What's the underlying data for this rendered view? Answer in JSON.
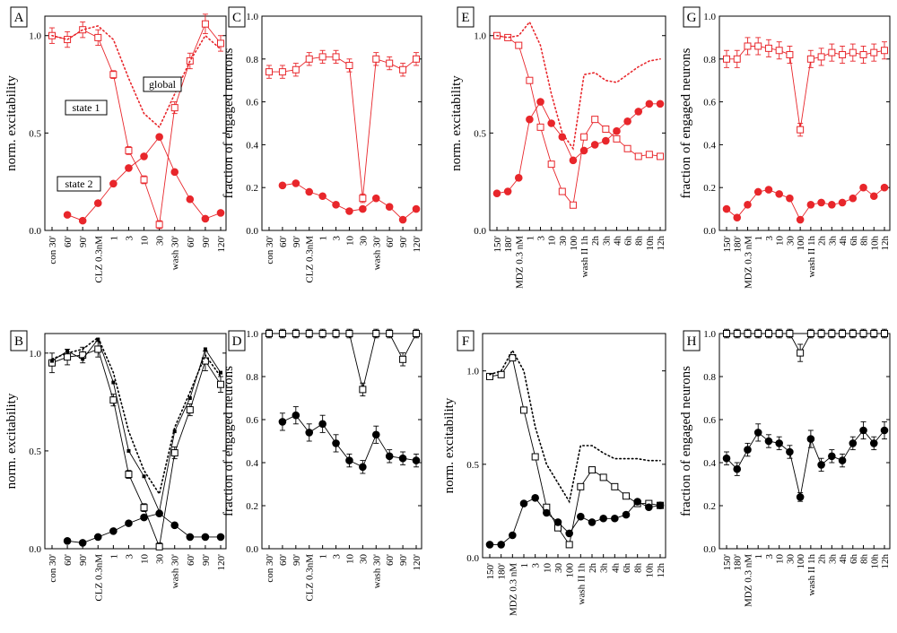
{
  "figure_title": "",
  "chart_data": [
    {
      "id": "A",
      "type": "line",
      "panel_label": "A",
      "color": "#e8262b",
      "ylabel": "norm. excitability",
      "ylim": [
        0,
        1.1
      ],
      "yticks": [
        "0.0",
        "0.5",
        "1.0"
      ],
      "ytick_values": [
        0,
        0.5,
        1.0
      ],
      "categories": [
        "con 30'",
        "60'",
        "90'",
        "CLZ 0.3nM",
        "1",
        "3",
        "10",
        "30",
        "wash 30'",
        "60'",
        "90'",
        "120'"
      ],
      "series": [
        {
          "name": "state 1",
          "marker": "open-square",
          "style": "solid",
          "values": [
            1.0,
            0.98,
            1.03,
            0.99,
            0.8,
            0.41,
            0.26,
            0.03,
            0.63,
            0.87,
            1.06,
            0.96
          ],
          "err": [
            0.04,
            0.04,
            0.04,
            0.04,
            0.02,
            0.02,
            0.02,
            0.02,
            0.03,
            0.04,
            0.05,
            0.04
          ]
        },
        {
          "name": "state 2",
          "marker": "filled-circle",
          "style": "solid",
          "values": [
            null,
            0.08,
            0.05,
            0.14,
            0.24,
            0.32,
            0.38,
            0.48,
            0.3,
            0.16,
            0.06,
            0.09
          ]
        },
        {
          "name": "global",
          "marker": "none",
          "style": "dotted",
          "values": [
            1.0,
            0.98,
            1.03,
            1.05,
            0.98,
            0.78,
            0.6,
            0.53,
            0.7,
            0.87,
            1.0,
            0.93
          ]
        }
      ],
      "annotations": [
        "global",
        "state 1",
        "state 2"
      ]
    },
    {
      "id": "B",
      "type": "line",
      "panel_label": "B",
      "color": "#000000",
      "ylabel": "norm. excitability",
      "ylim": [
        0,
        1.1
      ],
      "yticks": [
        "0.0",
        "0.5",
        "1.0"
      ],
      "ytick_values": [
        0,
        0.5,
        1.0
      ],
      "categories": [
        "con 30'",
        "60'",
        "90'",
        "CLZ 0.3nM",
        "1",
        "3",
        "10",
        "30",
        "wash 30'",
        "60'",
        "90'",
        "120'"
      ],
      "series": [
        {
          "name": "state 1",
          "marker": "open-square",
          "style": "solid",
          "values": [
            0.95,
            0.98,
            0.99,
            1.02,
            0.76,
            0.38,
            0.21,
            0.01,
            0.49,
            0.71,
            0.96,
            0.84
          ],
          "err": [
            0.05,
            0.04,
            0.04,
            0.04,
            0.03,
            0.02,
            0.02,
            0.02,
            0.03,
            0.03,
            0.05,
            0.04
          ]
        },
        {
          "name": "state 2",
          "marker": "filled-circle",
          "style": "solid",
          "values": [
            null,
            0.04,
            0.03,
            0.06,
            0.09,
            0.13,
            0.16,
            0.18,
            0.12,
            0.06,
            0.06,
            0.06
          ]
        },
        {
          "name": "small markers",
          "marker": "small-filled-square",
          "style": "solid",
          "values": [
            0.96,
            1.01,
            0.97,
            1.07,
            0.85,
            0.5,
            0.37,
            0.19,
            0.6,
            0.77,
            1.02,
            0.9
          ]
        },
        {
          "name": "global",
          "marker": "none",
          "style": "dotted",
          "values": [
            0.97,
            1.0,
            1.02,
            1.08,
            0.9,
            0.6,
            0.4,
            0.28,
            0.62,
            0.8,
            0.99,
            0.88
          ]
        }
      ]
    },
    {
      "id": "C",
      "type": "line",
      "panel_label": "C",
      "color": "#e8262b",
      "ylabel": "fraction of engaged neurons",
      "ylim": [
        0,
        1.0
      ],
      "yticks": [
        "0.0",
        "0.2",
        "0.4",
        "0.6",
        "0.8",
        "1.0"
      ],
      "ytick_values": [
        0,
        0.2,
        0.4,
        0.6,
        0.8,
        1.0
      ],
      "categories": [
        "con 30'",
        "60'",
        "90'",
        "CLZ 0.3nM",
        "1",
        "3",
        "10",
        "30",
        "wash 30'",
        "60'",
        "90'",
        "120'"
      ],
      "series": [
        {
          "name": "open",
          "marker": "open-square",
          "style": "solid",
          "values": [
            0.74,
            0.74,
            0.75,
            0.8,
            0.81,
            0.81,
            0.77,
            0.15,
            0.8,
            0.78,
            0.75,
            0.8
          ],
          "err": [
            0.03,
            0.03,
            0.03,
            0.03,
            0.03,
            0.03,
            0.03,
            0.02,
            0.03,
            0.03,
            0.03,
            0.03
          ]
        },
        {
          "name": "filled",
          "marker": "filled-circle",
          "style": "solid",
          "values": [
            null,
            0.21,
            0.22,
            0.18,
            0.16,
            0.12,
            0.09,
            0.1,
            0.15,
            0.11,
            0.05,
            0.1
          ]
        }
      ]
    },
    {
      "id": "D",
      "type": "line",
      "panel_label": "D",
      "color": "#000000",
      "ylabel": "fraction of engaged neurons",
      "ylim": [
        0,
        1.0
      ],
      "yticks": [
        "0.0",
        "0.2",
        "0.4",
        "0.6",
        "0.8",
        "1.0"
      ],
      "ytick_values": [
        0,
        0.2,
        0.4,
        0.6,
        0.8,
        1.0
      ],
      "categories": [
        "con 30'",
        "60'",
        "90'",
        "CLZ 0.3nM",
        "1",
        "3",
        "10",
        "30",
        "wash 30'",
        "60'",
        "90'",
        "120'"
      ],
      "series": [
        {
          "name": "open",
          "marker": "open-square",
          "style": "solid",
          "values": [
            1.0,
            1.0,
            1.0,
            1.0,
            1.0,
            1.0,
            1.0,
            0.74,
            1.0,
            1.0,
            0.88,
            1.0
          ],
          "err": [
            0.02,
            0.02,
            0.02,
            0.02,
            0.02,
            0.02,
            0.02,
            0.03,
            0.02,
            0.02,
            0.03,
            0.02
          ]
        },
        {
          "name": "filled",
          "marker": "filled-circle",
          "style": "solid",
          "values": [
            null,
            0.59,
            0.62,
            0.54,
            0.58,
            0.49,
            0.41,
            0.38,
            0.53,
            0.43,
            0.42,
            0.41
          ],
          "err": [
            null,
            0.04,
            0.04,
            0.04,
            0.04,
            0.04,
            0.03,
            0.03,
            0.04,
            0.03,
            0.03,
            0.03
          ]
        }
      ]
    },
    {
      "id": "E",
      "type": "line",
      "panel_label": "E",
      "color": "#e8262b",
      "ylabel": "norm. excitability",
      "ylim": [
        0,
        1.1
      ],
      "yticks": [
        "0.0",
        "0.5",
        "1.0"
      ],
      "ytick_values": [
        0,
        0.5,
        1.0
      ],
      "categories": [
        "150'",
        "180'",
        "MDZ 0.3 nM",
        "1",
        "3",
        "10",
        "30",
        "100",
        "wash II 1h",
        "2h",
        "3h",
        "4h",
        "6h",
        "8h",
        "10h",
        "12h"
      ],
      "series": [
        {
          "name": "open",
          "marker": "open-square",
          "style": "solid",
          "values": [
            1.0,
            0.99,
            0.95,
            0.77,
            0.53,
            0.34,
            0.2,
            0.13,
            0.48,
            0.57,
            0.52,
            0.47,
            0.42,
            0.38,
            0.39,
            0.38
          ]
        },
        {
          "name": "filled",
          "marker": "filled-circle",
          "style": "solid",
          "values": [
            0.19,
            0.2,
            0.27,
            0.57,
            0.66,
            0.55,
            0.48,
            0.36,
            0.41,
            0.44,
            0.46,
            0.51,
            0.56,
            0.61,
            0.65,
            0.65
          ]
        },
        {
          "name": "global",
          "marker": "none",
          "style": "dotted",
          "values": [
            1.0,
            0.99,
            1.0,
            1.07,
            0.95,
            0.7,
            0.5,
            0.42,
            0.8,
            0.81,
            0.77,
            0.76,
            0.8,
            0.84,
            0.87,
            0.88
          ]
        }
      ]
    },
    {
      "id": "F",
      "type": "line",
      "panel_label": "F",
      "color": "#000000",
      "ylabel": "norm. excitability",
      "ylim": [
        0,
        1.2
      ],
      "yticks": [
        "0.0",
        "0.5",
        "1.0"
      ],
      "ytick_values": [
        0,
        0.5,
        1.0
      ],
      "categories": [
        "150'",
        "180'",
        "MDZ 0.3 nM",
        "1",
        "3",
        "10",
        "30",
        "100",
        "wash II 1h",
        "2h",
        "3h",
        "4h",
        "6h",
        "8h",
        "10h",
        "12h"
      ],
      "series": [
        {
          "name": "open",
          "marker": "open-square",
          "style": "solid",
          "values": [
            0.97,
            0.98,
            1.07,
            0.79,
            0.54,
            0.27,
            0.16,
            0.07,
            0.38,
            0.47,
            0.43,
            0.38,
            0.33,
            0.29,
            0.29,
            0.28
          ]
        },
        {
          "name": "filled",
          "marker": "filled-circle",
          "style": "solid",
          "values": [
            0.07,
            0.07,
            0.12,
            0.29,
            0.32,
            0.24,
            0.19,
            0.13,
            0.22,
            0.19,
            0.21,
            0.21,
            0.23,
            0.3,
            0.27,
            0.28
          ]
        },
        {
          "name": "global",
          "marker": "none",
          "style": "dotted",
          "values": [
            0.98,
            1.0,
            1.11,
            1.0,
            0.7,
            0.5,
            0.4,
            0.3,
            0.6,
            0.6,
            0.56,
            0.53,
            0.53,
            0.53,
            0.52,
            0.52
          ]
        }
      ]
    },
    {
      "id": "G",
      "type": "line",
      "panel_label": "G",
      "color": "#e8262b",
      "ylabel": "fraction of engaged neurons",
      "ylim": [
        0,
        1.0
      ],
      "yticks": [
        "0.0",
        "0.2",
        "0.4",
        "0.6",
        "0.8",
        "1.0"
      ],
      "ytick_values": [
        0,
        0.2,
        0.4,
        0.6,
        0.8,
        1.0
      ],
      "categories": [
        "150'",
        "180'",
        "MDZ 0.3 nM",
        "1",
        "3",
        "10",
        "30",
        "100",
        "wash II 1h",
        "2h",
        "3h",
        "4h",
        "6h",
        "8h",
        "10h",
        "12h"
      ],
      "series": [
        {
          "name": "open",
          "marker": "open-square",
          "style": "solid",
          "values": [
            0.8,
            0.8,
            0.86,
            0.86,
            0.85,
            0.84,
            0.82,
            0.47,
            0.8,
            0.81,
            0.83,
            0.82,
            0.83,
            0.82,
            0.83,
            0.84
          ],
          "err": [
            0.04,
            0.04,
            0.04,
            0.04,
            0.04,
            0.04,
            0.04,
            0.03,
            0.04,
            0.04,
            0.04,
            0.04,
            0.04,
            0.04,
            0.04,
            0.04
          ]
        },
        {
          "name": "filled",
          "marker": "filled-circle",
          "style": "solid",
          "values": [
            0.1,
            0.06,
            0.12,
            0.18,
            0.19,
            0.17,
            0.15,
            0.05,
            0.12,
            0.13,
            0.12,
            0.13,
            0.15,
            0.2,
            0.16,
            0.2
          ]
        }
      ]
    },
    {
      "id": "H",
      "type": "line",
      "panel_label": "H",
      "color": "#000000",
      "ylabel": "fraction of engaged neurons",
      "ylim": [
        0,
        1.0
      ],
      "yticks": [
        "0.0",
        "0.2",
        "0.4",
        "0.6",
        "0.8",
        "1.0"
      ],
      "ytick_values": [
        0,
        0.2,
        0.4,
        0.6,
        0.8,
        1.0
      ],
      "categories": [
        "150'",
        "180'",
        "MDZ 0.3 nM",
        "1",
        "3",
        "10",
        "30",
        "100",
        "wash II 1h",
        "2h",
        "3h",
        "4h",
        "6h",
        "8h",
        "10h",
        "12h"
      ],
      "series": [
        {
          "name": "open",
          "marker": "open-square",
          "style": "solid",
          "values": [
            1.0,
            1.0,
            1.0,
            1.0,
            1.0,
            1.0,
            1.0,
            0.91,
            1.0,
            1.0,
            1.0,
            1.0,
            1.0,
            1.0,
            1.0,
            1.0
          ],
          "err": [
            0.02,
            0.02,
            0.02,
            0.02,
            0.02,
            0.02,
            0.02,
            0.04,
            0.02,
            0.02,
            0.02,
            0.02,
            0.02,
            0.02,
            0.02,
            0.02
          ]
        },
        {
          "name": "filled",
          "marker": "filled-circle",
          "style": "solid",
          "values": [
            0.42,
            0.37,
            0.46,
            0.54,
            0.5,
            0.49,
            0.45,
            0.24,
            0.51,
            0.39,
            0.43,
            0.41,
            0.49,
            0.55,
            0.49,
            0.55
          ],
          "err": [
            0.03,
            0.03,
            0.03,
            0.04,
            0.03,
            0.03,
            0.03,
            0.02,
            0.04,
            0.03,
            0.03,
            0.03,
            0.03,
            0.04,
            0.03,
            0.04
          ]
        }
      ]
    }
  ]
}
